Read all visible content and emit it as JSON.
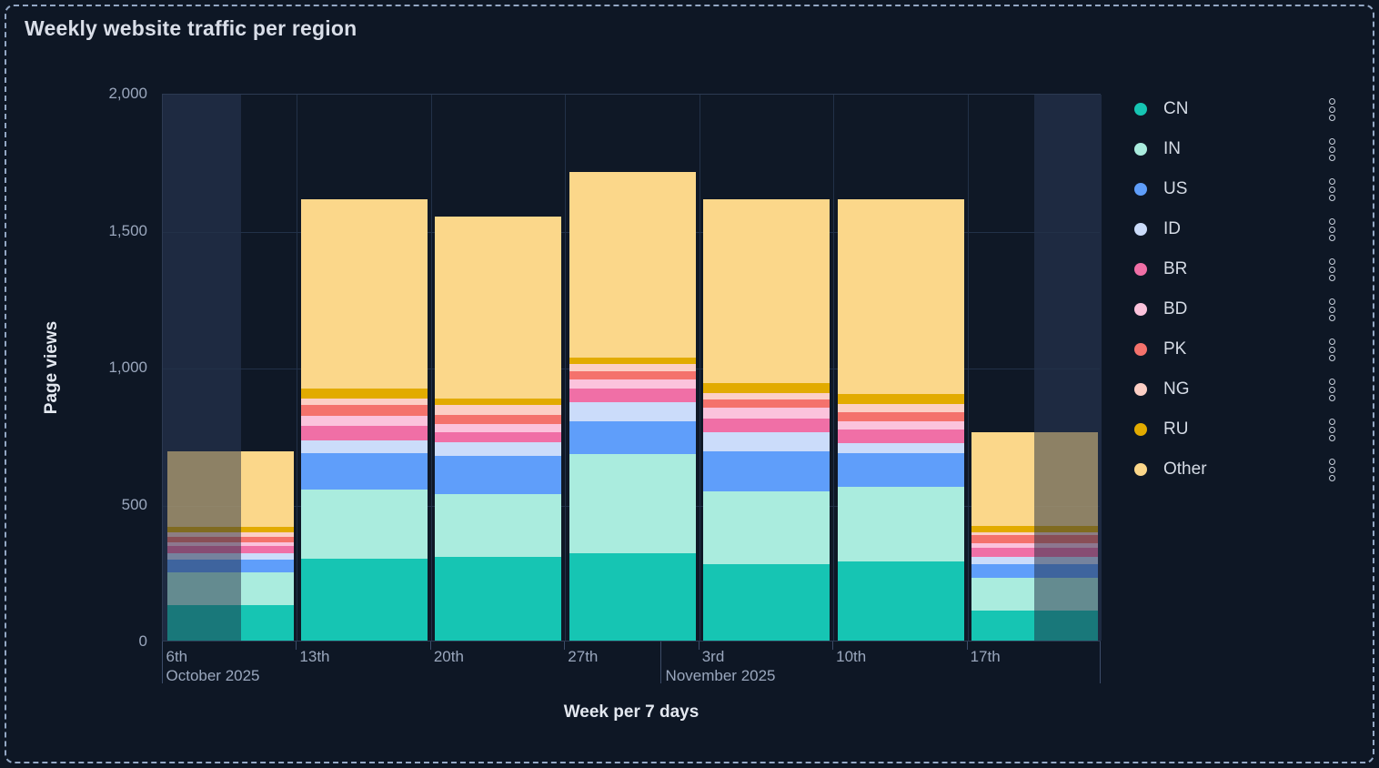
{
  "title": "Weekly website traffic per region",
  "axes": {
    "y_title": "Page views",
    "x_title": "Week per 7 days",
    "y_ticks": [
      "2,000",
      "1,500",
      "1,000",
      "500",
      "0"
    ],
    "x_ticks": [
      {
        "label": "6th",
        "sub": "October 2025"
      },
      {
        "label": "13th"
      },
      {
        "label": "20th"
      },
      {
        "label": "27th"
      },
      {
        "label": "3rd",
        "sub": "November 2025"
      },
      {
        "label": "10th"
      },
      {
        "label": "17th"
      }
    ]
  },
  "legend": {
    "items": [
      "CN",
      "IN",
      "US",
      "ID",
      "BR",
      "BD",
      "PK",
      "NG",
      "RU",
      "Other"
    ],
    "more_icon": "kebab-vertical-dots"
  },
  "chart_data": {
    "type": "bar",
    "stacked": true,
    "title": "Weekly website traffic per region",
    "xlabel": "Week per 7 days",
    "ylabel": "Page views",
    "ylim": [
      0,
      2000
    ],
    "grid": true,
    "legend_position": "right",
    "categories": [
      "6th",
      "13th",
      "20th",
      "27th",
      "3rd",
      "10th",
      "17th"
    ],
    "category_months": [
      {
        "label": "October 2025",
        "starts_at_category": "6th"
      },
      {
        "label": "November 2025",
        "starts_at_category": "3rd"
      }
    ],
    "series": [
      {
        "name": "CN",
        "color": "#16c5b3",
        "values": [
          130,
          300,
          305,
          320,
          280,
          290,
          110
        ]
      },
      {
        "name": "IN",
        "color": "#aaecde",
        "values": [
          120,
          250,
          230,
          360,
          265,
          270,
          120
        ]
      },
      {
        "name": "US",
        "color": "#5f9efa",
        "values": [
          45,
          135,
          140,
          120,
          145,
          125,
          50
        ]
      },
      {
        "name": "ID",
        "color": "#cbdcfa",
        "values": [
          25,
          45,
          50,
          70,
          70,
          35,
          25
        ]
      },
      {
        "name": "BR",
        "color": "#f06fa6",
        "values": [
          25,
          55,
          35,
          50,
          50,
          50,
          35
        ]
      },
      {
        "name": "BD",
        "color": "#fbc3dc",
        "values": [
          15,
          35,
          30,
          35,
          40,
          30,
          15
        ]
      },
      {
        "name": "PK",
        "color": "#f4726c",
        "values": [
          20,
          40,
          35,
          30,
          30,
          35,
          30
        ]
      },
      {
        "name": "NG",
        "color": "#fccfc5",
        "values": [
          15,
          25,
          35,
          25,
          25,
          30,
          10
        ]
      },
      {
        "name": "RU",
        "color": "#e2ab00",
        "values": [
          20,
          35,
          25,
          25,
          35,
          35,
          25
        ]
      },
      {
        "name": "Other",
        "color": "#fbd78a",
        "values": [
          275,
          690,
          665,
          675,
          670,
          710,
          340
        ]
      }
    ],
    "totals": [
      690,
      1610,
      1550,
      1710,
      1610,
      1610,
      760
    ],
    "partial_buckets": [
      {
        "category": "6th",
        "dimmed_side": "left",
        "dim_fraction": 0.58
      },
      {
        "category": "17th",
        "dimmed_side": "right",
        "dim_fraction": 0.5
      }
    ],
    "month_separators_col_frac": [
      0,
      3.714,
      7
    ],
    "colors": {
      "background": "#0e1725",
      "plot_background": "#0f1826",
      "partial_band": "#1e2a41",
      "gridline": "#223148",
      "axis_text": "#9aa7bd",
      "text": "#d9dee8"
    }
  }
}
